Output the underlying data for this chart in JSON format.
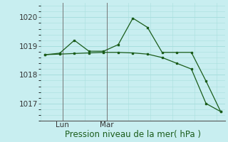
{
  "title": "Pression niveau de la mer( hPa )",
  "background_color": "#c8eef0",
  "grid_color": "#a8dede",
  "line_color": "#1a5c1a",
  "ylim": [
    1016.4,
    1020.5
  ],
  "yticks": [
    1017,
    1018,
    1019,
    1020
  ],
  "line1_x": [
    0,
    1,
    2,
    3,
    4,
    5,
    6,
    7,
    8,
    9,
    10,
    11,
    12
  ],
  "line1_y": [
    1018.7,
    1018.75,
    1019.2,
    1018.82,
    1018.82,
    1019.05,
    1019.97,
    1019.65,
    1018.78,
    1018.78,
    1018.78,
    1017.78,
    1016.72
  ],
  "line2_x": [
    0,
    1,
    2,
    3,
    4,
    5,
    6,
    7,
    8,
    9,
    10,
    11,
    12
  ],
  "line2_y": [
    1018.7,
    1018.72,
    1018.74,
    1018.76,
    1018.78,
    1018.78,
    1018.76,
    1018.72,
    1018.6,
    1018.4,
    1018.2,
    1017.0,
    1016.72
  ],
  "vline_lun": 1.2,
  "vline_mar": 4.2,
  "tick_fontsize": 7.5,
  "xlabel_fontsize": 8.5
}
